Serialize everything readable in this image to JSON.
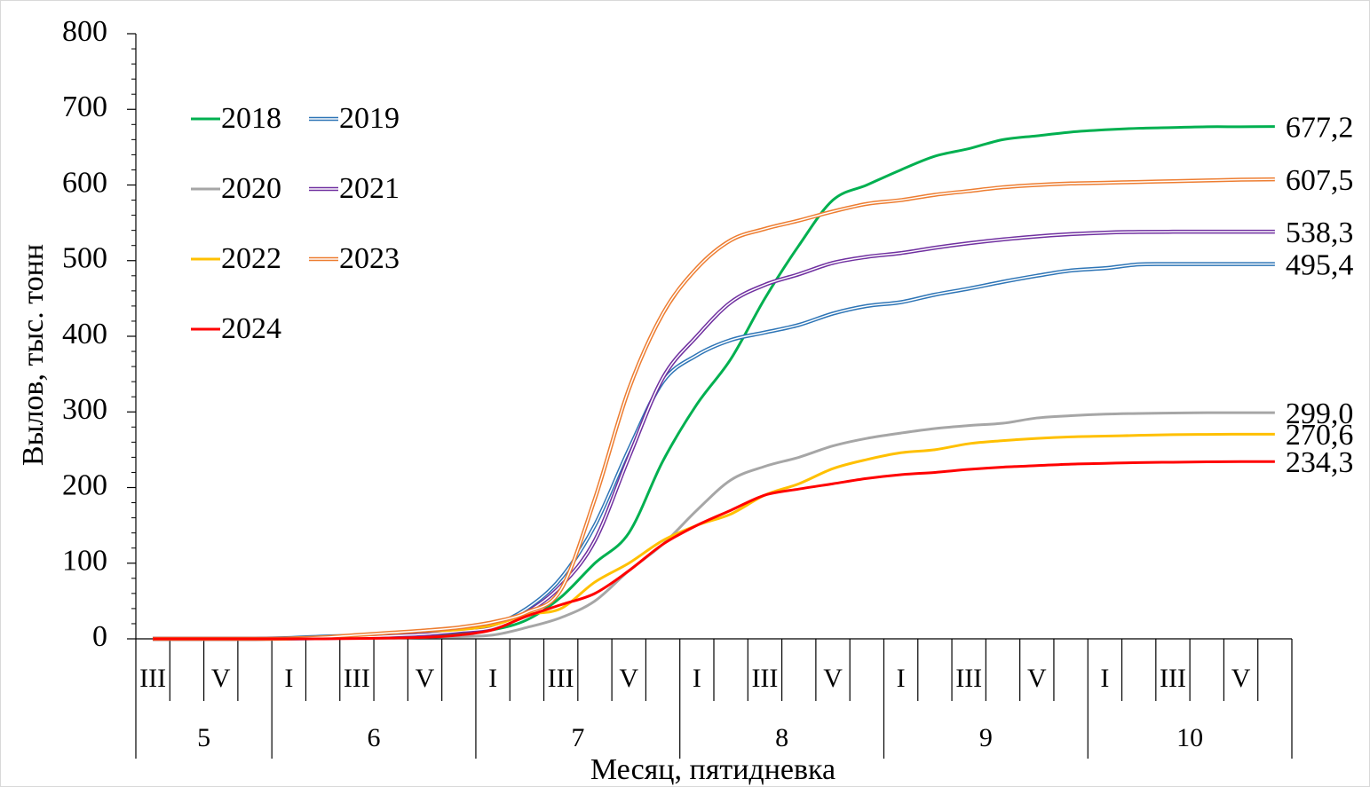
{
  "chart_data": {
    "type": "line",
    "y_label": "Вылов, тыс. тонн",
    "x_label": "Месяц, пятидневка",
    "categories": [
      "III",
      null,
      "V",
      null,
      "I",
      null,
      "III",
      null,
      "V",
      null,
      "I",
      null,
      "III",
      null,
      "V",
      null,
      "I",
      null,
      "III",
      null,
      "V",
      null,
      "I",
      null,
      "III",
      null,
      "V",
      null,
      "I",
      null,
      "III",
      null,
      "V",
      null
    ],
    "month_groups": [
      {
        "label": "5",
        "count": 4
      },
      {
        "label": "6",
        "count": 6
      },
      {
        "label": "7",
        "count": 6
      },
      {
        "label": "8",
        "count": 6
      },
      {
        "label": "9",
        "count": 6
      },
      {
        "label": "10",
        "count": 6
      }
    ],
    "ylim": [
      0,
      800
    ],
    "yticks": [
      0,
      100,
      200,
      300,
      400,
      500,
      600,
      700,
      800
    ],
    "series": [
      {
        "name": "2018",
        "color": "#00b050",
        "double": false,
        "end_label": "677,2",
        "values": [
          0,
          0,
          0,
          0,
          0,
          0.5,
          1,
          2,
          4,
          7,
          12,
          25,
          55,
          100,
          140,
          235,
          310,
          370,
          450,
          520,
          580,
          600,
          620,
          638,
          648,
          660,
          665,
          670,
          673,
          675,
          676,
          677,
          677,
          677.2
        ]
      },
      {
        "name": "2019",
        "color": "#2e75b6",
        "double": true,
        "end_label": "495,4",
        "values": [
          0,
          0,
          0,
          0,
          1,
          3,
          4,
          6,
          8,
          12,
          18,
          40,
          80,
          150,
          250,
          340,
          375,
          395,
          405,
          415,
          430,
          440,
          445,
          455,
          463,
          472,
          480,
          487,
          490,
          495,
          495.4,
          495.4,
          495.4,
          495.4
        ]
      },
      {
        "name": "2020",
        "color": "#a6a6a6",
        "double": false,
        "end_label": "299,0",
        "values": [
          0,
          0,
          0,
          0,
          0,
          0.5,
          1,
          1.5,
          2,
          3,
          5,
          15,
          28,
          50,
          90,
          125,
          170,
          210,
          228,
          240,
          255,
          265,
          272,
          278,
          282,
          285,
          292,
          295,
          297,
          298,
          298.5,
          299,
          299,
          299.0
        ]
      },
      {
        "name": "2021",
        "color": "#7030a0",
        "double": true,
        "end_label": "538,3",
        "values": [
          0,
          0,
          0,
          0,
          0.5,
          1,
          2,
          4,
          6,
          10,
          15,
          35,
          70,
          130,
          240,
          345,
          400,
          445,
          468,
          482,
          497,
          505,
          510,
          517,
          523,
          528,
          532,
          535,
          537,
          538,
          538.2,
          538.3,
          538.3,
          538.3
        ]
      },
      {
        "name": "2022",
        "color": "#ffc000",
        "double": false,
        "end_label": "270,6",
        "values": [
          0,
          0,
          0,
          0,
          1,
          2,
          5,
          8,
          10,
          12,
          18,
          32,
          40,
          75,
          100,
          130,
          150,
          165,
          190,
          205,
          225,
          237,
          246,
          250,
          258,
          262,
          265,
          267,
          268,
          269,
          270,
          270.3,
          270.5,
          270.6
        ]
      },
      {
        "name": "2023",
        "color": "#ed7d31",
        "double": true,
        "end_label": "607,5",
        "values": [
          0,
          0,
          0,
          0,
          0.5,
          2,
          5,
          8,
          11,
          15,
          22,
          35,
          65,
          185,
          330,
          430,
          490,
          527,
          542,
          553,
          565,
          575,
          580,
          587,
          592,
          597,
          600,
          602,
          603,
          604,
          605,
          606,
          607,
          607.5
        ]
      },
      {
        "name": "2024",
        "color": "#ff0000",
        "double": false,
        "end_label": "234,3",
        "values": [
          0,
          0,
          0,
          0,
          0,
          0,
          0.5,
          1,
          2,
          5,
          12,
          30,
          45,
          60,
          90,
          125,
          150,
          170,
          190,
          198,
          205,
          212,
          217,
          220,
          224,
          227,
          229,
          231,
          232,
          233,
          233.5,
          234,
          234.3,
          234.3
        ]
      }
    ]
  }
}
